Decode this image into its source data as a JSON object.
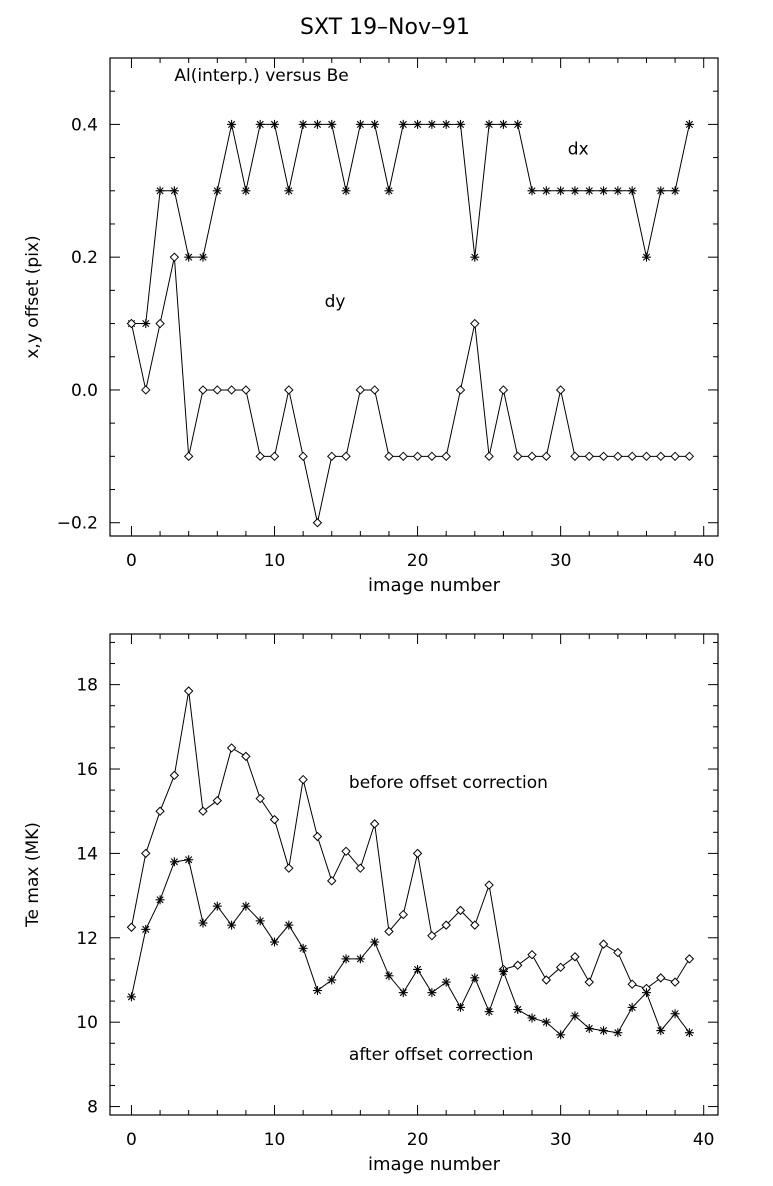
{
  "figure_title": "SXT   19–Nov–91",
  "chart_data": [
    {
      "type": "line",
      "xlabel": "image number",
      "ylabel": "x,y offset (pix)",
      "xlim": [
        -1.5,
        41
      ],
      "ylim": [
        -0.22,
        0.5
      ],
      "xticks": [
        0,
        10,
        20,
        30,
        40
      ],
      "yticks": [
        -0.2,
        0.0,
        0.2,
        0.4
      ],
      "ytick_labels": [
        "−0.2",
        "0.0",
        "0.2",
        "0.4"
      ],
      "annotations": [
        {
          "text": "Al(interp.) versus Be",
          "x": 3,
          "y": 0.465
        },
        {
          "text": "dx",
          "x": 30.5,
          "y": 0.355
        },
        {
          "text": "dy",
          "x": 13.5,
          "y": 0.125
        }
      ],
      "series": [
        {
          "label": "dx",
          "marker": "star",
          "x": [
            0,
            1,
            2,
            3,
            4,
            5,
            6,
            7,
            8,
            9,
            10,
            11,
            12,
            13,
            14,
            15,
            16,
            17,
            18,
            19,
            20,
            21,
            22,
            23,
            24,
            25,
            26,
            27,
            28,
            29,
            30,
            31,
            32,
            33,
            34,
            35,
            36,
            37,
            38,
            39
          ],
          "values": [
            0.1,
            0.1,
            0.3,
            0.3,
            0.2,
            0.2,
            0.3,
            0.4,
            0.3,
            0.4,
            0.4,
            0.3,
            0.4,
            0.4,
            0.4,
            0.3,
            0.4,
            0.4,
            0.3,
            0.4,
            0.4,
            0.4,
            0.4,
            0.4,
            0.2,
            0.4,
            0.4,
            0.4,
            0.3,
            0.3,
            0.3,
            0.3,
            0.3,
            0.3,
            0.3,
            0.3,
            0.2,
            0.3,
            0.3,
            0.4
          ]
        },
        {
          "label": "dy",
          "marker": "diamond",
          "x": [
            0,
            1,
            2,
            3,
            4,
            5,
            6,
            7,
            8,
            9,
            10,
            11,
            12,
            13,
            14,
            15,
            16,
            17,
            18,
            19,
            20,
            21,
            22,
            23,
            24,
            25,
            26,
            27,
            28,
            29,
            30,
            31,
            32,
            33,
            34,
            35,
            36,
            37,
            38,
            39
          ],
          "values": [
            0.1,
            0.0,
            0.1,
            0.2,
            -0.1,
            0.0,
            0.0,
            0.0,
            0.0,
            -0.1,
            -0.1,
            0.0,
            -0.1,
            -0.2,
            -0.1,
            -0.1,
            0.0,
            0.0,
            -0.1,
            -0.1,
            -0.1,
            -0.1,
            -0.1,
            0.0,
            0.1,
            -0.1,
            0.0,
            -0.1,
            -0.1,
            -0.1,
            0.0,
            -0.1,
            -0.1,
            -0.1,
            -0.1,
            -0.1,
            -0.1,
            -0.1,
            -0.1,
            -0.1
          ]
        }
      ]
    },
    {
      "type": "line",
      "xlabel": "image number",
      "ylabel": "Te max (MK)",
      "xlim": [
        -1.5,
        41
      ],
      "ylim": [
        7.8,
        19.2
      ],
      "xticks": [
        0,
        10,
        20,
        30,
        40
      ],
      "yticks": [
        8,
        10,
        12,
        14,
        16,
        18
      ],
      "ytick_labels": [
        "8",
        "10",
        "12",
        "14",
        "16",
        "18"
      ],
      "annotations": [
        {
          "text": "before offset correction",
          "x": 15.2,
          "y": 15.55
        },
        {
          "text": "after offset correction",
          "x": 15.2,
          "y": 9.1
        }
      ],
      "series": [
        {
          "label": "before offset correction",
          "marker": "diamond",
          "x": [
            0,
            1,
            2,
            3,
            4,
            5,
            6,
            7,
            8,
            9,
            10,
            11,
            12,
            13,
            14,
            15,
            16,
            17,
            18,
            19,
            20,
            21,
            22,
            23,
            24,
            25,
            26,
            27,
            28,
            29,
            30,
            31,
            32,
            33,
            34,
            35,
            36,
            37,
            38,
            39
          ],
          "values": [
            12.25,
            14.0,
            15.0,
            15.85,
            17.85,
            15.0,
            15.25,
            16.5,
            16.3,
            15.3,
            14.8,
            13.65,
            15.75,
            14.4,
            13.35,
            14.05,
            13.65,
            14.7,
            12.15,
            12.55,
            14.0,
            12.05,
            12.3,
            12.65,
            12.3,
            13.25,
            11.25,
            11.35,
            11.6,
            11.0,
            11.3,
            11.55,
            10.95,
            11.85,
            11.65,
            10.9,
            10.8,
            11.05,
            10.95,
            11.5
          ]
        },
        {
          "label": "after offset correction",
          "marker": "star",
          "x": [
            0,
            1,
            2,
            3,
            4,
            5,
            6,
            7,
            8,
            9,
            10,
            11,
            12,
            13,
            14,
            15,
            16,
            17,
            18,
            19,
            20,
            21,
            22,
            23,
            24,
            25,
            26,
            27,
            28,
            29,
            30,
            31,
            32,
            33,
            34,
            35,
            36,
            37,
            38,
            39
          ],
          "values": [
            10.6,
            12.2,
            12.9,
            13.8,
            13.85,
            12.35,
            12.75,
            12.3,
            12.75,
            12.4,
            11.9,
            12.3,
            11.75,
            10.75,
            11.0,
            11.5,
            11.5,
            11.9,
            11.1,
            10.7,
            11.25,
            10.7,
            10.95,
            10.35,
            11.05,
            10.25,
            11.2,
            10.3,
            10.1,
            10.0,
            9.7,
            10.15,
            9.85,
            9.8,
            9.75,
            10.35,
            10.7,
            9.8,
            10.2,
            9.75
          ]
        }
      ]
    }
  ]
}
